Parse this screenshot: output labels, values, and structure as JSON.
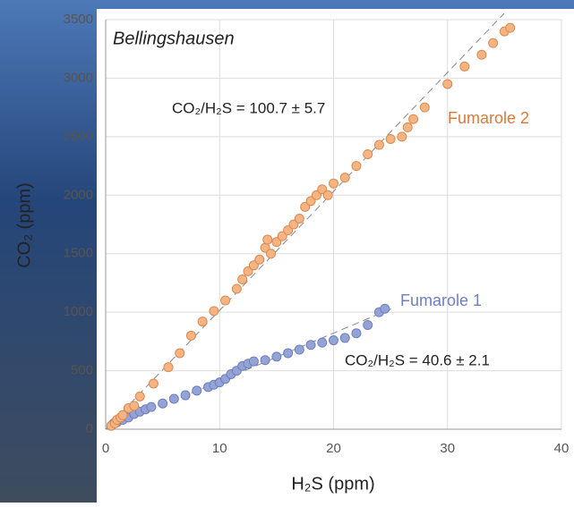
{
  "chart_data": {
    "type": "scatter",
    "annotations": [
      "Bellingshausen",
      "CO₂/H₂S = 100.7 ±  5.7",
      "CO₂/H₂S = 40.6 ±  2.1"
    ],
    "x_label": "H₂S (ppm)",
    "y_label": "CO₂ (ppm)",
    "xlim": [
      0,
      40
    ],
    "xticks": [
      0,
      10,
      20,
      30,
      40
    ],
    "ylim": [
      0,
      3500
    ],
    "yticks": [
      0,
      500,
      1000,
      1500,
      2000,
      2500,
      3000,
      3500
    ],
    "grid": true,
    "series": [
      {
        "name": "Fumarole 1",
        "color": "#93a3d6",
        "x": [
          0.5,
          0.7,
          1,
          1.5,
          2,
          2.5,
          3,
          3.5,
          4,
          5,
          6,
          7,
          8,
          9,
          9.5,
          10,
          10.5,
          11,
          11.5,
          12,
          12.5,
          13,
          14,
          15,
          16,
          17,
          18,
          19,
          20,
          21,
          22,
          23,
          24,
          24.5
        ],
        "values": [
          30,
          50,
          60,
          80,
          100,
          130,
          150,
          170,
          190,
          220,
          260,
          290,
          330,
          360,
          380,
          400,
          430,
          470,
          500,
          540,
          560,
          580,
          590,
          620,
          650,
          680,
          720,
          740,
          760,
          780,
          820,
          890,
          1000,
          1030
        ]
      },
      {
        "name": "Fumarole 2",
        "color": "#f6b482",
        "x": [
          0.5,
          0.8,
          1,
          1.3,
          1.5,
          2,
          2.5,
          3,
          4.2,
          5.5,
          6.5,
          7.5,
          8.5,
          9.5,
          10.5,
          11.5,
          12,
          12.5,
          13,
          13.5,
          14,
          14.2,
          14.5,
          15,
          15.5,
          16,
          16.5,
          17,
          17.5,
          18,
          18.5,
          19,
          19.5,
          20,
          21,
          22,
          23,
          24,
          25,
          26,
          26.5,
          27,
          28,
          30,
          31.5,
          33,
          34,
          35,
          35.5
        ],
        "values": [
          30,
          50,
          80,
          100,
          120,
          180,
          200,
          280,
          390,
          530,
          650,
          800,
          920,
          1010,
          1100,
          1200,
          1280,
          1350,
          1400,
          1450,
          1550,
          1620,
          1500,
          1600,
          1650,
          1700,
          1750,
          1800,
          1900,
          1950,
          2000,
          2050,
          2000,
          2100,
          2150,
          2250,
          2350,
          2430,
          2480,
          2500,
          2580,
          2650,
          2750,
          2950,
          3100,
          3200,
          3300,
          3400,
          3430
        ]
      }
    ]
  }
}
